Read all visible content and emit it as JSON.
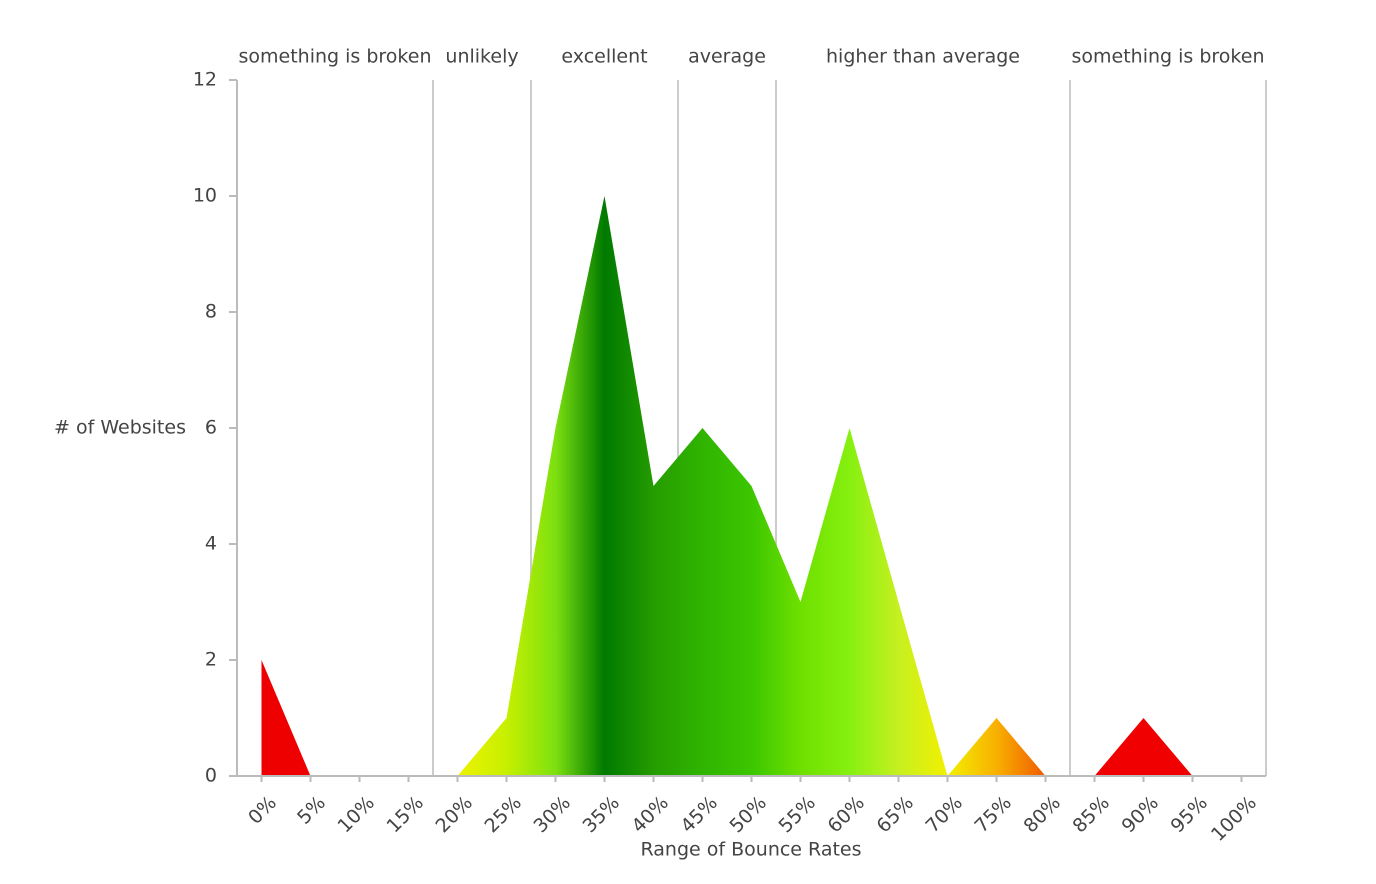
{
  "chart_data": {
    "type": "area",
    "y_label": "# of Websites",
    "x_label": "Range of Bounce Rates",
    "x": [
      0,
      5,
      10,
      15,
      20,
      25,
      30,
      35,
      40,
      45,
      50,
      55,
      60,
      65,
      70,
      75,
      80,
      85,
      90,
      95,
      100
    ],
    "values": [
      2,
      0,
      0,
      0,
      0,
      1,
      6,
      10,
      5,
      6,
      5,
      3,
      6,
      3,
      0,
      1,
      0,
      0,
      1,
      0,
      0
    ],
    "point_colors": [
      "#ee0000",
      "#f00000",
      "#f00000",
      "#f00000",
      "#eef200",
      "#c6f000",
      "#7de010",
      "#007a00",
      "#259c00",
      "#30b400",
      "#3cc600",
      "#6ee000",
      "#86f010",
      "#c6f020",
      "#f2f000",
      "#f8b000",
      "#f05a00",
      "#f00000",
      "#f00000",
      "#f00000",
      "#f00000"
    ],
    "xlim": [
      -2.5,
      102.5
    ],
    "ylim": [
      0,
      12
    ],
    "yticks": [
      0,
      2,
      4,
      6,
      8,
      10,
      12
    ],
    "xticks": [
      {
        "value": 0,
        "label": "0%"
      },
      {
        "value": 5,
        "label": "5%"
      },
      {
        "value": 10,
        "label": "10%"
      },
      {
        "value": 15,
        "label": "15%"
      },
      {
        "value": 20,
        "label": "20%"
      },
      {
        "value": 25,
        "label": "25%"
      },
      {
        "value": 30,
        "label": "30%"
      },
      {
        "value": 35,
        "label": "35%"
      },
      {
        "value": 40,
        "label": "40%"
      },
      {
        "value": 45,
        "label": "45%"
      },
      {
        "value": 50,
        "label": "50%"
      },
      {
        "value": 55,
        "label": "55%"
      },
      {
        "value": 60,
        "label": "60%"
      },
      {
        "value": 65,
        "label": "65%"
      },
      {
        "value": 70,
        "label": "70%"
      },
      {
        "value": 75,
        "label": "75%"
      },
      {
        "value": 80,
        "label": "80%"
      },
      {
        "value": 85,
        "label": "85%"
      },
      {
        "value": 90,
        "label": "90%"
      },
      {
        "value": 95,
        "label": "95%"
      },
      {
        "value": 100,
        "label": "100%"
      }
    ],
    "zones": [
      {
        "label": "something is broken",
        "from": -2.5,
        "to": 17.5
      },
      {
        "label": "unlikely",
        "from": 17.5,
        "to": 27.5
      },
      {
        "label": "excellent",
        "from": 27.5,
        "to": 42.5
      },
      {
        "label": "average",
        "from": 42.5,
        "to": 52.5
      },
      {
        "label": "higher than average",
        "from": 52.5,
        "to": 82.5
      },
      {
        "label": "something is broken",
        "from": 82.5,
        "to": 102.5
      }
    ]
  }
}
